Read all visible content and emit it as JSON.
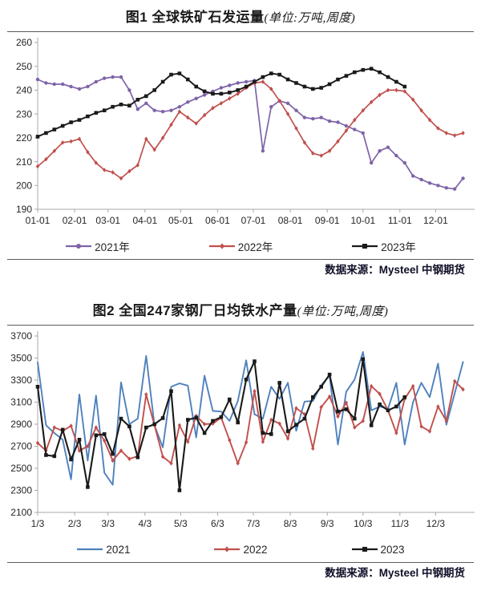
{
  "source_note": "数据来源：Mysteel 中钢期货",
  "colors": {
    "purple_2021": "#7E63A8",
    "red_2022": "#C0504D",
    "black_2023": "#1A1A1A",
    "blue_2021": "#4F81BD"
  },
  "chart_data": [
    {
      "type": "line",
      "title": "图1  全球铁矿石发运量",
      "title_unit": "(单位:万吨,周度)",
      "source": "数据来源：Mysteel 中钢期货",
      "x_unit": "week (weekly data, Jan–Dec)",
      "xlabel": "",
      "ylabel": "",
      "ylim": [
        190,
        260
      ],
      "ytick_step": 10,
      "grid": false,
      "legend_position": "bottom",
      "x_tick_labels": [
        "01-01",
        "02-01",
        "03-01",
        "04-01",
        "05-01",
        "06-01",
        "07-01",
        "08-01",
        "09-01",
        "10-01",
        "11-01",
        "12-01"
      ],
      "series": [
        {
          "name": "2021年",
          "color": "#7E63A8",
          "marker": "circle",
          "line_width": 1.7,
          "values": [
            244.5,
            243,
            242.5,
            242.5,
            241.5,
            240.5,
            241.5,
            243.5,
            245,
            245.5,
            245.5,
            240,
            232,
            234.5,
            231.5,
            231,
            231.5,
            233,
            235,
            236.5,
            238,
            239.5,
            241,
            242,
            243,
            243.5,
            244,
            214.5,
            233,
            235.5,
            234.5,
            231.5,
            228.5,
            228,
            228.5,
            227,
            226.5,
            225,
            223.5,
            222,
            209.5,
            214.5,
            216,
            212.5,
            209.5,
            204,
            202.5,
            201,
            200,
            199,
            198.5,
            203
          ]
        },
        {
          "name": "2022年",
          "color": "#C0504D",
          "marker": "diamond",
          "line_width": 1.7,
          "values": [
            208,
            211,
            214.5,
            218,
            218.5,
            219.5,
            214,
            209.5,
            206.5,
            205.5,
            203,
            206,
            208.5,
            219.5,
            215,
            220,
            225.5,
            231,
            228.5,
            226,
            229.5,
            232.5,
            234.5,
            236.5,
            238.5,
            241,
            243,
            243.5,
            240.5,
            235.5,
            230,
            224,
            218,
            213.5,
            212.5,
            214.5,
            218.5,
            223,
            227.5,
            231.5,
            235,
            238,
            240,
            240,
            239.5,
            236,
            231.5,
            227.5,
            224,
            222,
            221,
            222
          ]
        },
        {
          "name": "2023年",
          "color": "#1A1A1A",
          "marker": "square",
          "line_width": 1.9,
          "values": [
            220.5,
            222,
            223.5,
            225,
            226.5,
            227.5,
            229,
            230.5,
            231.5,
            233,
            234,
            233.5,
            236,
            237.5,
            240,
            243.5,
            246.5,
            247,
            244.5,
            241.5,
            239.5,
            238.5,
            238.5,
            239,
            240,
            241.5,
            243.5,
            245.5,
            247,
            246.5,
            244.5,
            243,
            241.5,
            240.5,
            241,
            242.5,
            244.5,
            246,
            247.5,
            248.5,
            249,
            247.5,
            245.5,
            243.5,
            241.5
          ]
        }
      ]
    },
    {
      "type": "line",
      "title": "图2  全国247家钢厂日均铁水产量",
      "title_unit": "(单位:万吨,周度)",
      "source": "数据来源：Mysteel 中钢期货",
      "x_unit": "week (weekly data, Jan–Dec)",
      "xlabel": "",
      "ylabel": "",
      "ylim": [
        2100,
        3700
      ],
      "ytick_step": 200,
      "grid": false,
      "legend_position": "bottom",
      "x_tick_labels": [
        "1/3",
        "2/3",
        "3/3",
        "4/3",
        "5/3",
        "6/3",
        "7/3",
        "8/3",
        "9/3",
        "10/3",
        "11/3",
        "12/3"
      ],
      "series": [
        {
          "name": "2021",
          "color": "#4F81BD",
          "marker": "none",
          "line_width": 1.9,
          "values": [
            3460,
            2890,
            2820,
            2760,
            2400,
            3170,
            2570,
            3160,
            2460,
            2350,
            3280,
            2900,
            2950,
            3520,
            2890,
            2690,
            3240,
            3270,
            3250,
            2780,
            3340,
            3020,
            3015,
            2930,
            3110,
            3480,
            2990,
            2950,
            3240,
            3130,
            3275,
            2840,
            3105,
            3110,
            3255,
            3340,
            2715,
            3195,
            3305,
            3555,
            3025,
            3060,
            3040,
            3275,
            2715,
            3100,
            3275,
            3145,
            3450,
            2895,
            3180,
            3465
          ]
        },
        {
          "name": "2022",
          "color": "#C0504D",
          "marker": "diamond",
          "line_width": 1.9,
          "values": [
            2730,
            2660,
            2870,
            2840,
            2885,
            2660,
            2700,
            2870,
            2750,
            2570,
            2660,
            2585,
            2610,
            3170,
            2890,
            2605,
            2545,
            2890,
            2740,
            2975,
            2900,
            2905,
            2960,
            2755,
            2545,
            2735,
            3200,
            2740,
            2940,
            2905,
            2770,
            3045,
            2990,
            2680,
            3055,
            3150,
            2970,
            3095,
            2870,
            2930,
            3245,
            3175,
            3025,
            2820,
            3130,
            3245,
            2880,
            2835,
            3060,
            2930,
            3290,
            3215
          ]
        },
        {
          "name": "2023",
          "color": "#1A1A1A",
          "marker": "square",
          "line_width": 2.1,
          "values": [
            3240,
            2620,
            2610,
            2850,
            2580,
            2760,
            2330,
            2800,
            2810,
            2630,
            2950,
            2880,
            2600,
            2870,
            2900,
            2955,
            3200,
            2300,
            2940,
            2960,
            2820,
            2930,
            2965,
            3125,
            2915,
            3305,
            3470,
            2820,
            2810,
            3275,
            2835,
            2895,
            2950,
            3145,
            3240,
            3350,
            3015,
            3035,
            2950,
            3490,
            2890,
            3080,
            3025,
            3060,
            3145
          ]
        }
      ]
    }
  ]
}
